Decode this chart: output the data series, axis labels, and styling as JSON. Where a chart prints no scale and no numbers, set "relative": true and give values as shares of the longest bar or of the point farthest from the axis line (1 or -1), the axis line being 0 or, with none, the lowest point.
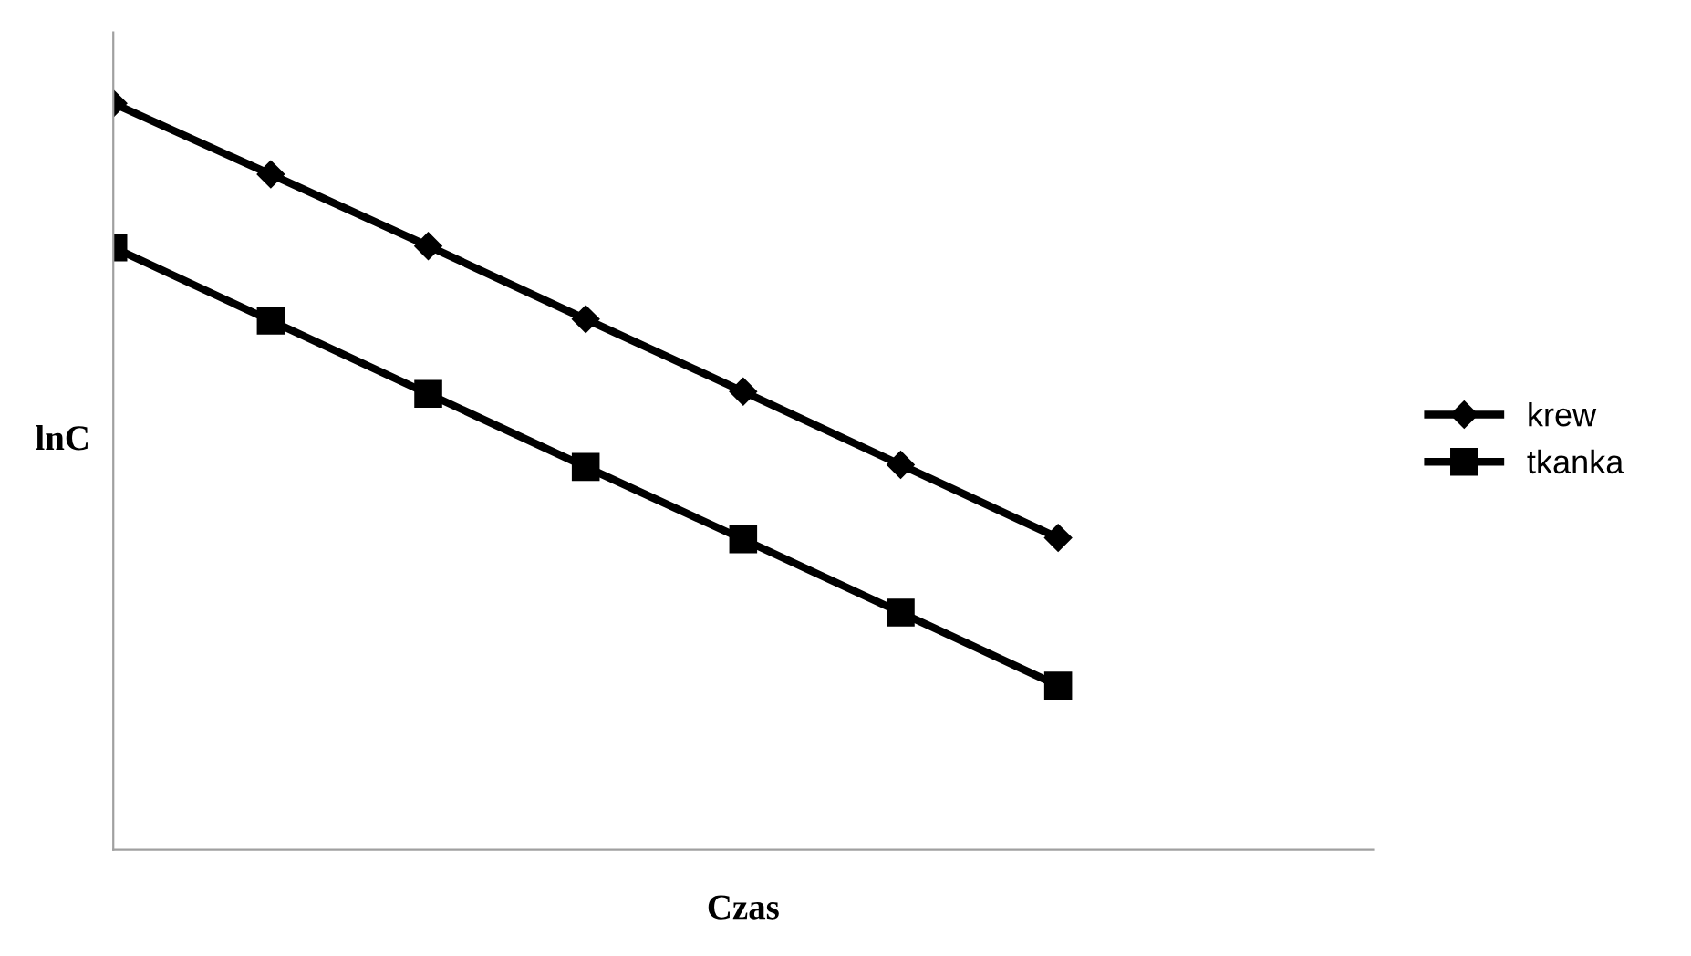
{
  "chart_data": {
    "type": "line",
    "relative": true,
    "xlabel": "Czas",
    "ylabel": "lnC",
    "categories": [
      null,
      null,
      null,
      null,
      null,
      null,
      null,
      null,
      null
    ],
    "series": [
      {
        "name": "krew",
        "color": "#000000",
        "marker": "diamond",
        "values": [
          1,
          0.905,
          0.809,
          0.711,
          0.614,
          0.516,
          0.418,
          null,
          null
        ]
      },
      {
        "name": "tkanka",
        "color": "#000000",
        "marker": "square",
        "values": [
          0.807,
          0.709,
          0.611,
          0.513,
          0.416,
          0.318,
          0.22,
          null,
          null
        ]
      }
    ],
    "legend": "right",
    "grid": false,
    "line_style": "solid"
  }
}
